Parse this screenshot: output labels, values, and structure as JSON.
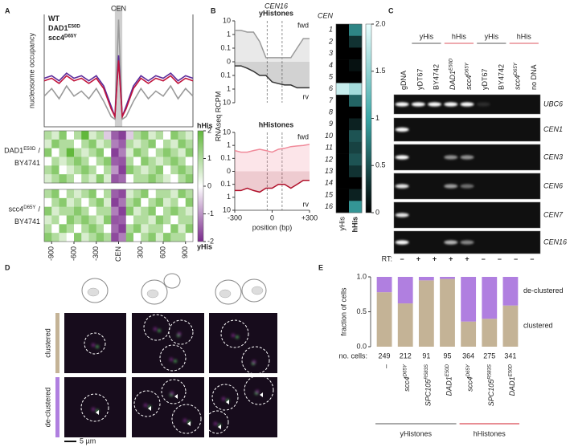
{
  "panel_labels": [
    "A",
    "B",
    "C",
    "D",
    "E"
  ],
  "chart_data": [
    {
      "type": "line",
      "title": "CEN",
      "ylabel": "nucleosome occupancy",
      "x": [
        -1000,
        -900,
        -800,
        -700,
        -600,
        -500,
        -400,
        -300,
        -200,
        -100,
        -50,
        0,
        50,
        100,
        200,
        300,
        400,
        500,
        600,
        700,
        800,
        900,
        1000
      ],
      "series": [
        {
          "name": "WT",
          "color": "#9a9a9a",
          "values": [
            0.6,
            0.75,
            0.55,
            0.8,
            0.6,
            0.7,
            0.55,
            0.75,
            0.5,
            0.2,
            0.15,
            2.1,
            0.15,
            0.2,
            0.5,
            0.75,
            0.55,
            0.7,
            0.6,
            0.8,
            0.55,
            0.75,
            0.6
          ]
        },
        {
          "name": "DAD1",
          "superscript": "E50D",
          "color": "#5b2a9a",
          "values": [
            0.95,
            1.0,
            0.9,
            1.05,
            0.95,
            1.0,
            0.9,
            1.0,
            0.8,
            0.4,
            0.2,
            1.4,
            0.2,
            0.4,
            0.8,
            1.0,
            0.9,
            1.0,
            0.95,
            1.05,
            0.9,
            1.0,
            0.95
          ]
        },
        {
          "name": "scc4",
          "superscript": "D65Y",
          "color": "#c0143c",
          "values": [
            0.9,
            0.95,
            0.85,
            1.0,
            0.9,
            0.95,
            0.85,
            0.95,
            0.75,
            0.35,
            0.2,
            1.3,
            0.2,
            0.35,
            0.75,
            0.95,
            0.85,
            0.95,
            0.9,
            1.0,
            0.85,
            0.95,
            0.9
          ]
        }
      ],
      "xlim": [
        -1000,
        1000
      ],
      "ylim": [
        0,
        2.2
      ],
      "highlight": [
        -50,
        50
      ]
    },
    {
      "type": "heatmap",
      "label": {
        "name": "DAD1",
        "superscript": "E50D",
        "suffix": "/",
        "line2": "BY4741",
        "color": "#c0143c"
      },
      "bins": [
        -1000,
        -900,
        -800,
        -700,
        -600,
        -500,
        -400,
        -300,
        -200,
        -100,
        0,
        100,
        200,
        300,
        400,
        500,
        600,
        700,
        800,
        900,
        1000
      ],
      "xlim": [
        -1000,
        1000
      ],
      "matrix": [
        [
          1,
          0.5,
          1.5,
          0,
          1,
          2,
          0.5,
          1,
          -0.5,
          -1.5,
          -1.8,
          -0.5,
          1,
          1.5,
          0.5,
          1,
          0,
          1.5,
          1,
          0.5
        ],
        [
          0.5,
          1.5,
          1,
          1,
          0,
          1,
          1.5,
          0.5,
          1,
          -1.2,
          -1.5,
          1,
          0.5,
          1,
          1.5,
          0,
          1,
          0.5,
          1.5,
          1
        ],
        [
          1.5,
          0,
          1,
          2,
          1,
          0.5,
          1,
          1.5,
          0,
          -1.8,
          -1.2,
          0.5,
          1.5,
          1,
          0,
          1,
          1.5,
          1,
          0.5,
          1.5
        ],
        [
          0,
          1,
          0.5,
          1,
          1.5,
          1,
          0,
          1,
          1.5,
          -1.5,
          -1.6,
          1,
          0,
          1.5,
          1,
          0.5,
          1,
          1.5,
          1,
          0
        ],
        [
          1,
          1.5,
          0,
          0.5,
          1,
          1.5,
          1,
          0,
          1,
          -1,
          -1.8,
          1.5,
          1,
          0.5,
          1,
          1.5,
          0,
          1,
          1.5,
          1
        ],
        [
          0.5,
          1,
          1.5,
          1,
          0,
          1,
          0.5,
          1.5,
          0.5,
          -1.6,
          -1.4,
          0,
          1,
          1,
          1.5,
          1,
          0.5,
          0,
          1,
          1.5
        ]
      ],
      "clim": [
        -2,
        2
      ],
      "colors": [
        "#7a2a8c",
        "#ffffff",
        "#62b83c"
      ],
      "colorbar": {
        "ticks": [
          2,
          1,
          0,
          -1,
          -2
        ],
        "top_label": "hHis",
        "top_color": "#4faa2a",
        "bottom_label": "yHis",
        "bottom_color": "#7a2a8c"
      }
    },
    {
      "type": "heatmap",
      "label": {
        "name": "scc4",
        "superscript": "D65Y",
        "suffix": "/",
        "line2": "BY4741",
        "color": "#7a2a8c"
      },
      "bins": [
        -1000,
        -900,
        -800,
        -700,
        -600,
        -500,
        -400,
        -300,
        -200,
        -100,
        0,
        100,
        200,
        300,
        400,
        500,
        600,
        700,
        800,
        900,
        1000
      ],
      "xlim": [
        -1000,
        1000
      ],
      "matrix": [
        [
          1,
          1.5,
          0,
          1,
          0.5,
          1,
          1.5,
          0,
          1,
          -1.5,
          -1.7,
          0.5,
          1,
          1.5,
          0,
          1,
          1,
          0.5,
          1.5,
          1
        ],
        [
          0,
          1,
          1.5,
          0.5,
          1,
          0,
          1,
          1.5,
          0.5,
          -1.8,
          -1.3,
          1,
          1.5,
          0,
          1,
          1.5,
          0.5,
          1,
          0,
          1.5
        ],
        [
          1.5,
          0.5,
          1,
          1,
          1.5,
          1,
          0,
          1,
          1,
          -1.2,
          -1.8,
          1.5,
          0.5,
          1,
          1.5,
          0,
          1,
          1.5,
          1,
          0.5
        ],
        [
          0.5,
          1,
          0,
          1.5,
          1,
          1.5,
          1,
          0.5,
          1.5,
          -1.6,
          -1.5,
          0,
          1,
          1,
          0.5,
          1.5,
          1,
          0,
          1,
          1
        ],
        [
          1,
          0,
          1.5,
          1,
          0,
          1,
          1.5,
          1,
          0,
          -1.4,
          -1.8,
          1,
          1.5,
          0.5,
          1,
          1,
          0,
          1.5,
          0.5,
          1.5
        ],
        [
          1.5,
          1,
          0.5,
          0,
          1.5,
          0.5,
          1,
          1.5,
          1,
          -1.7,
          -1.2,
          1.5,
          0,
          1,
          1.5,
          0.5,
          1.5,
          1,
          1,
          0
        ]
      ],
      "clim": [
        -2,
        2
      ],
      "colors": [
        "#7a2a8c",
        "#ffffff",
        "#62b83c"
      ],
      "xticks": [
        -900,
        -600,
        -300,
        {
          "value": 0,
          "label": "CEN"
        },
        300,
        600,
        900
      ]
    },
    {
      "type": "mirror-line",
      "title": "CEN16",
      "subtitle": "yHistones",
      "subtitle_color": "#8c8c8c",
      "ylabel": "RNAseq RCPM",
      "scale": "symlog",
      "x": [
        -300,
        -250,
        -200,
        -150,
        -100,
        -50,
        0,
        50,
        100,
        150,
        200,
        250,
        300
      ],
      "series": [
        {
          "name": "fwd",
          "color": "#9a9a9a",
          "values": [
            2,
            2,
            1.5,
            1.5,
            0.3,
            0.02,
            0.02,
            0.02,
            0.02,
            0.02,
            0.1,
            0.5,
            0.5
          ]
        },
        {
          "name": "rv",
          "color": "#333333",
          "values": [
            -0.02,
            -0.02,
            -0.03,
            -0.05,
            -0.1,
            -0.1,
            -0.3,
            -0.4,
            -0.5,
            -0.5,
            -0.8,
            -0.8,
            -0.8
          ]
        }
      ],
      "xlim": [
        -300,
        300
      ],
      "ylim": [
        -10,
        10
      ],
      "yticks": [
        10,
        1,
        0.1,
        0,
        {
          "value": -0.1,
          "label": "0.1"
        },
        {
          "value": -1,
          "label": "1"
        },
        {
          "value": -10,
          "label": "10"
        }
      ],
      "vlines": [
        -40,
        80
      ]
    },
    {
      "type": "mirror-line",
      "subtitle": "hHistones",
      "subtitle_color": "#c8102e",
      "xlabel": "position (bp)",
      "scale": "symlog",
      "x": [
        -300,
        -250,
        -200,
        -150,
        -100,
        -50,
        0,
        50,
        100,
        150,
        200,
        250,
        300
      ],
      "series": [
        {
          "name": "fwd",
          "color": "#f08a9a",
          "values": [
            0.4,
            0.3,
            0.3,
            0.4,
            0.5,
            0.4,
            0.3,
            0.5,
            0.6,
            0.8,
            0.9,
            1,
            1.2
          ]
        },
        {
          "name": "rv",
          "color": "#b0102a",
          "values": [
            -0.3,
            -0.3,
            -0.2,
            -0.3,
            -0.4,
            -0.2,
            -0.2,
            -0.1,
            -0.1,
            -0.2,
            -0.1,
            -0.05,
            -0.05
          ]
        }
      ],
      "xlim": [
        -300,
        300
      ],
      "ylim": [
        -10,
        10
      ],
      "yticks": [
        10,
        1,
        0.1,
        0,
        {
          "value": -0.1,
          "label": "0.1"
        },
        {
          "value": -1,
          "label": "1"
        },
        {
          "value": -10,
          "label": "10"
        }
      ],
      "xticks": [
        -300,
        0,
        {
          "value": 300,
          "label": "+300"
        }
      ],
      "vlines": [
        -40,
        80
      ]
    },
    {
      "type": "heatmap",
      "title": "CEN",
      "rows": [
        "1",
        "2",
        "3",
        "4",
        "5",
        "6",
        "7",
        "8",
        "9",
        "10",
        "11",
        "12",
        "13",
        "14",
        "15",
        "16"
      ],
      "columns": [
        {
          "name": "yHis",
          "color": "#222222"
        },
        {
          "name": "hHis",
          "color": "#d01c2a"
        }
      ],
      "matrix": [
        [
          0,
          0.8
        ],
        [
          0,
          0.3
        ],
        [
          0,
          0
        ],
        [
          0,
          0.1
        ],
        [
          0,
          0
        ],
        [
          1.8,
          1.6
        ],
        [
          0,
          0.6
        ],
        [
          0,
          0
        ],
        [
          0,
          0.2
        ],
        [
          0,
          0.5
        ],
        [
          0,
          0.4
        ],
        [
          0,
          0.5
        ],
        [
          0,
          0.3
        ],
        [
          0,
          0
        ],
        [
          0,
          0.2
        ],
        [
          0,
          0.9
        ]
      ],
      "clim": [
        0,
        2
      ],
      "colors": [
        "#000000",
        "#3aa6a6",
        "#eaffff"
      ],
      "colorbar": {
        "ticks": [
          0,
          0.5,
          1,
          1.5,
          {
            "value": 2,
            "label": "2.0"
          }
        ]
      }
    },
    {
      "type": "stacked-bar",
      "ylabel": "fraction of cells",
      "groups": [
        {
          "name": "yHistones",
          "color": "#555555",
          "categories": [
            {
              "name": "–"
            },
            {
              "name": "scc4",
              "superscript": "D65Y"
            },
            {
              "name": "SPC105",
              "superscript": "R583S"
            },
            {
              "name": "DAD1",
              "superscript": "E50D"
            }
          ]
        },
        {
          "name": "hHistones",
          "color": "#d01c2a",
          "categories": [
            {
              "name": "scc4",
              "superscript": "D65Y"
            },
            {
              "name": "SPC105",
              "superscript": "R583S"
            },
            {
              "name": "DAD1",
              "superscript": "E50D"
            }
          ]
        }
      ],
      "series": [
        {
          "name": "clustered",
          "color": "#c4b396",
          "values": [
            0.78,
            0.62,
            0.95,
            0.97,
            0.36,
            0.4,
            0.59
          ]
        },
        {
          "name": "de-clustered",
          "color": "#b07fe0",
          "values": [
            0.22,
            0.38,
            0.05,
            0.03,
            0.64,
            0.6,
            0.41
          ]
        }
      ],
      "ylim": [
        0,
        1
      ],
      "yticks": [
        {
          "value": 0,
          "label": "0.0"
        },
        0.5,
        {
          "value": 1,
          "label": "1.0"
        }
      ],
      "counts_label": "no. cells:",
      "counts": [
        249,
        212,
        91,
        95,
        364,
        275,
        341
      ]
    }
  ],
  "gel": {
    "first_lane": {
      "name": "gDNA"
    },
    "groups": [
      {
        "name": "yHis",
        "color": "#222222",
        "lanes": [
          {
            "name": "yDT67"
          },
          {
            "name": "BY4742"
          }
        ]
      },
      {
        "name": "hHis",
        "color": "#d01c2a",
        "lanes": [
          {
            "name": "DAD1",
            "superscript": "E50D"
          },
          {
            "name": "scc4",
            "superscript": "D65Y"
          }
        ]
      },
      {
        "name": "yHis",
        "color": "#222222",
        "lanes": [
          {
            "name": "yDT67"
          },
          {
            "name": "BY4742"
          }
        ]
      },
      {
        "name": "hHis",
        "color": "#d01c2a",
        "lanes": [
          {
            "name": "scc4",
            "superscript": "D65Y"
          },
          {
            "name": "no DNA"
          }
        ]
      }
    ],
    "rows": [
      "UBC6",
      "CEN1",
      "CEN3",
      "CEN6",
      "CEN7",
      "CEN16"
    ],
    "rt_label": "RT:",
    "rt": [
      "–",
      "+",
      "+",
      "+",
      "+",
      "–",
      "–",
      "–",
      "–"
    ]
  },
  "microscopy": {
    "rows": [
      {
        "name": "clustered",
        "color": "#c4b396"
      },
      {
        "name": "de-clustered",
        "color": "#b07fe0"
      }
    ],
    "scale_bar": "5 µm"
  }
}
